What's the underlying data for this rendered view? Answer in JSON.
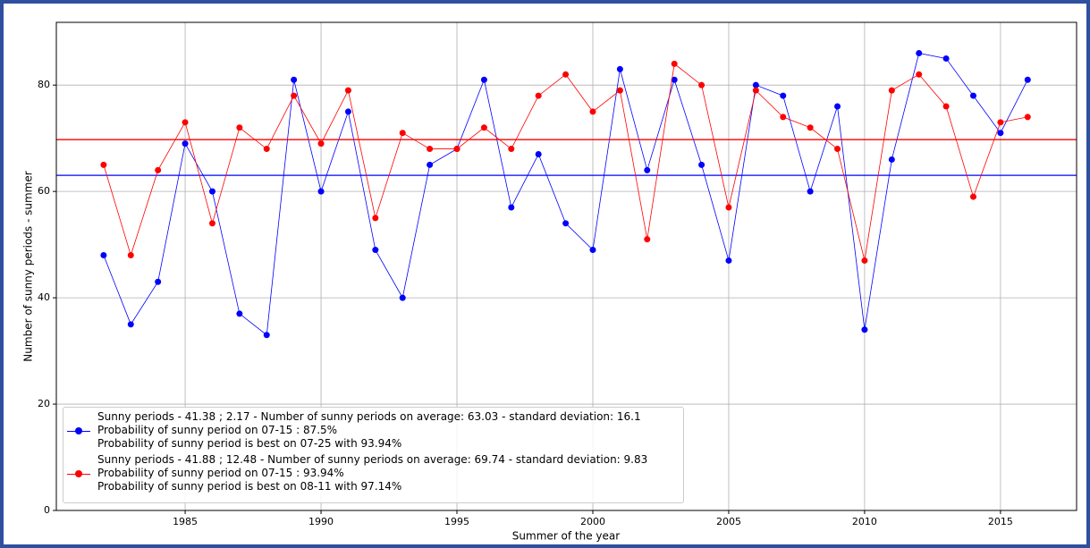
{
  "chart_data": {
    "type": "line",
    "x_label": "Summer of the year",
    "y_label": "Number of sunny periods - summer",
    "x": [
      1982,
      1983,
      1984,
      1985,
      1986,
      1987,
      1988,
      1989,
      1990,
      1991,
      1992,
      1993,
      1994,
      1995,
      1996,
      1997,
      1998,
      1999,
      2000,
      2001,
      2002,
      2003,
      2004,
      2005,
      2006,
      2007,
      2008,
      2009,
      2010,
      2011,
      2012,
      2013,
      2014,
      2015,
      2016
    ],
    "series": [
      {
        "name": "Sunny periods - 41.38 ; 2.17 - Number of sunny periods on average: 63.03  -  standard deviation: 16.1\nProbability of sunny period on 07-15 : 87.5%\nProbability of sunny period is best on 07-25 with 93.94%",
        "color": "#0000ff",
        "mean": 63.03,
        "values": [
          48,
          35,
          43,
          69,
          60,
          37,
          33,
          81,
          60,
          75,
          49,
          40,
          65,
          68,
          81,
          57,
          67,
          54,
          49,
          83,
          64,
          81,
          65,
          47,
          80,
          78,
          60,
          76,
          34,
          66,
          86,
          85,
          78,
          71,
          81
        ]
      },
      {
        "name": "Sunny periods - 41.88 ; 12.48 - Number of sunny periods on average: 69.74  -  standard deviation: 9.83\nProbability of sunny period on 07-15 : 93.94%\nProbability of sunny period is best on 08-11 with 97.14%",
        "color": "#ff0000",
        "mean": 69.74,
        "values": [
          65,
          48,
          64,
          73,
          54,
          72,
          68,
          78,
          69,
          79,
          55,
          71,
          68,
          68,
          72,
          68,
          78,
          82,
          75,
          79,
          51,
          84,
          80,
          57,
          79,
          74,
          72,
          68,
          47,
          79,
          82,
          76,
          59,
          73,
          74
        ]
      }
    ],
    "xlim": [
      1980.26,
      2017.8
    ],
    "xticks": [
      1985,
      1990,
      1995,
      2000,
      2005,
      2010,
      2015
    ],
    "ylim": [
      0,
      91.8
    ],
    "yticks": [
      0,
      20,
      40,
      60,
      80
    ],
    "grid": true,
    "legend": "lower left"
  }
}
